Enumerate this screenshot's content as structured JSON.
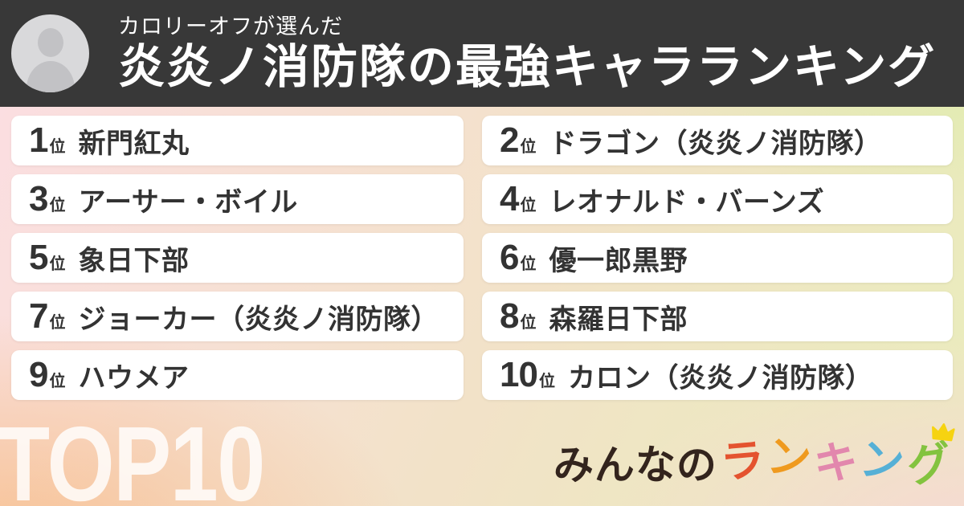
{
  "header": {
    "subtitle": "カロリーオフが選んだ",
    "title": "炎炎ノ消防隊の最強キャラランキング"
  },
  "ranking": {
    "unit": "位",
    "items": [
      {
        "rank": "1",
        "name": "新門紅丸"
      },
      {
        "rank": "2",
        "name": "ドラゴン（炎炎ノ消防隊）"
      },
      {
        "rank": "3",
        "name": "アーサー・ボイル"
      },
      {
        "rank": "4",
        "name": "レオナルド・バーンズ"
      },
      {
        "rank": "5",
        "name": "象日下部"
      },
      {
        "rank": "6",
        "name": "優一郎黒野"
      },
      {
        "rank": "7",
        "name": "ジョーカー（炎炎ノ消防隊）"
      },
      {
        "rank": "8",
        "name": "森羅日下部"
      },
      {
        "rank": "9",
        "name": "ハウメア"
      },
      {
        "rank": "10",
        "name": "カロン（炎炎ノ消防隊）"
      }
    ]
  },
  "footer": {
    "watermark": "TOP10",
    "logo": {
      "prefix": "みんなの",
      "prefix_color": "#33241d",
      "colored": [
        {
          "char": "ラ",
          "color": "#e4532f"
        },
        {
          "char": "ン",
          "color": "#ef9a1f"
        },
        {
          "char": "キ",
          "color": "#e287ad"
        },
        {
          "char": "ン",
          "color": "#56b0d6"
        },
        {
          "char": "グ",
          "color": "#83c33f"
        }
      ],
      "crown_color": "#f6d311"
    }
  },
  "colors": {
    "header_bg": "#383838",
    "card_bg": "#ffffff",
    "card_text": "#333333",
    "watermark_color": "rgba(255,255,255,0.82)",
    "bg_top_left": "#fcdee3",
    "bg_top_right": "#d5efa0",
    "bg_bottom_left": "#f7bf8e",
    "bg_bottom_right": "#f9d5d8",
    "avatar_bg": "#d9d9db",
    "avatar_figure": "#c2c2c5"
  }
}
